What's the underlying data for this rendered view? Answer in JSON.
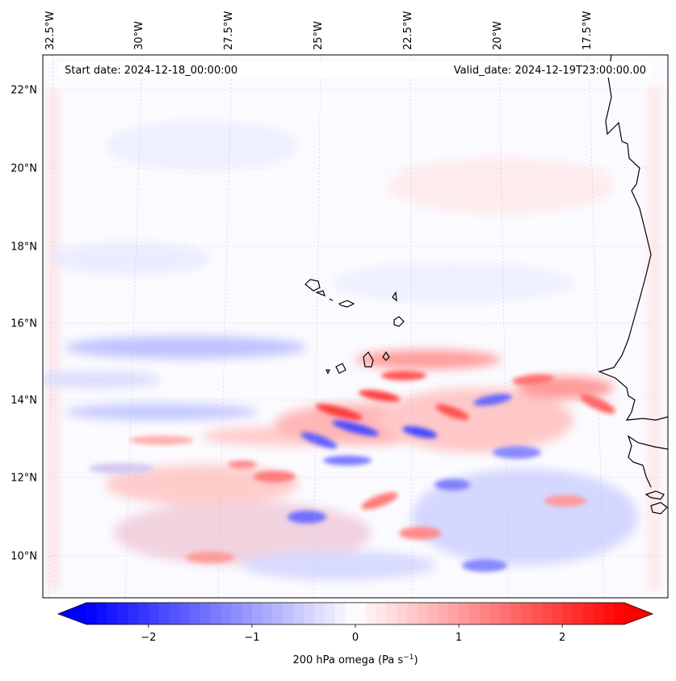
{
  "map": {
    "start_label": "Start date: 2024-12-18_00:00:00",
    "valid_label": "Valid_date: 2024-12-19T23:00:00.00",
    "lon_labels": [
      "32.5°W",
      "30°W",
      "27.5°W",
      "25°W",
      "22.5°W",
      "20°W",
      "17.5°W"
    ],
    "lat_labels": [
      "22°N",
      "20°N",
      "18°N",
      "16°N",
      "14°N",
      "12°N",
      "10°N"
    ]
  },
  "colorbar": {
    "ticks": [
      "−2",
      "−1",
      "0",
      "1",
      "2"
    ],
    "tick_values": [
      -2,
      -1,
      0,
      1,
      2
    ],
    "vmin": -2.6,
    "vmax": 2.6,
    "label": "200 hPa omega (Pa s",
    "label_sup": "−1",
    "label_close": ")"
  },
  "colors": {
    "negative": "#0000ff",
    "neutral": "#ffffff",
    "positive": "#ff0000"
  }
}
